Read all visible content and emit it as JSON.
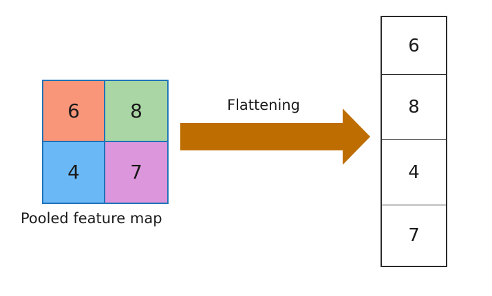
{
  "pooled_map": {
    "caption": "Pooled feature map",
    "cells": [
      {
        "value": "6",
        "color": "#f9967a"
      },
      {
        "value": "8",
        "color": "#a9d6a4"
      },
      {
        "value": "4",
        "color": "#6ab8f5"
      },
      {
        "value": "7",
        "color": "#dc96dc"
      }
    ]
  },
  "arrow": {
    "label": "Flattening",
    "color": "#be6e00"
  },
  "flattened": {
    "cells": [
      "6",
      "8",
      "4",
      "7"
    ]
  }
}
